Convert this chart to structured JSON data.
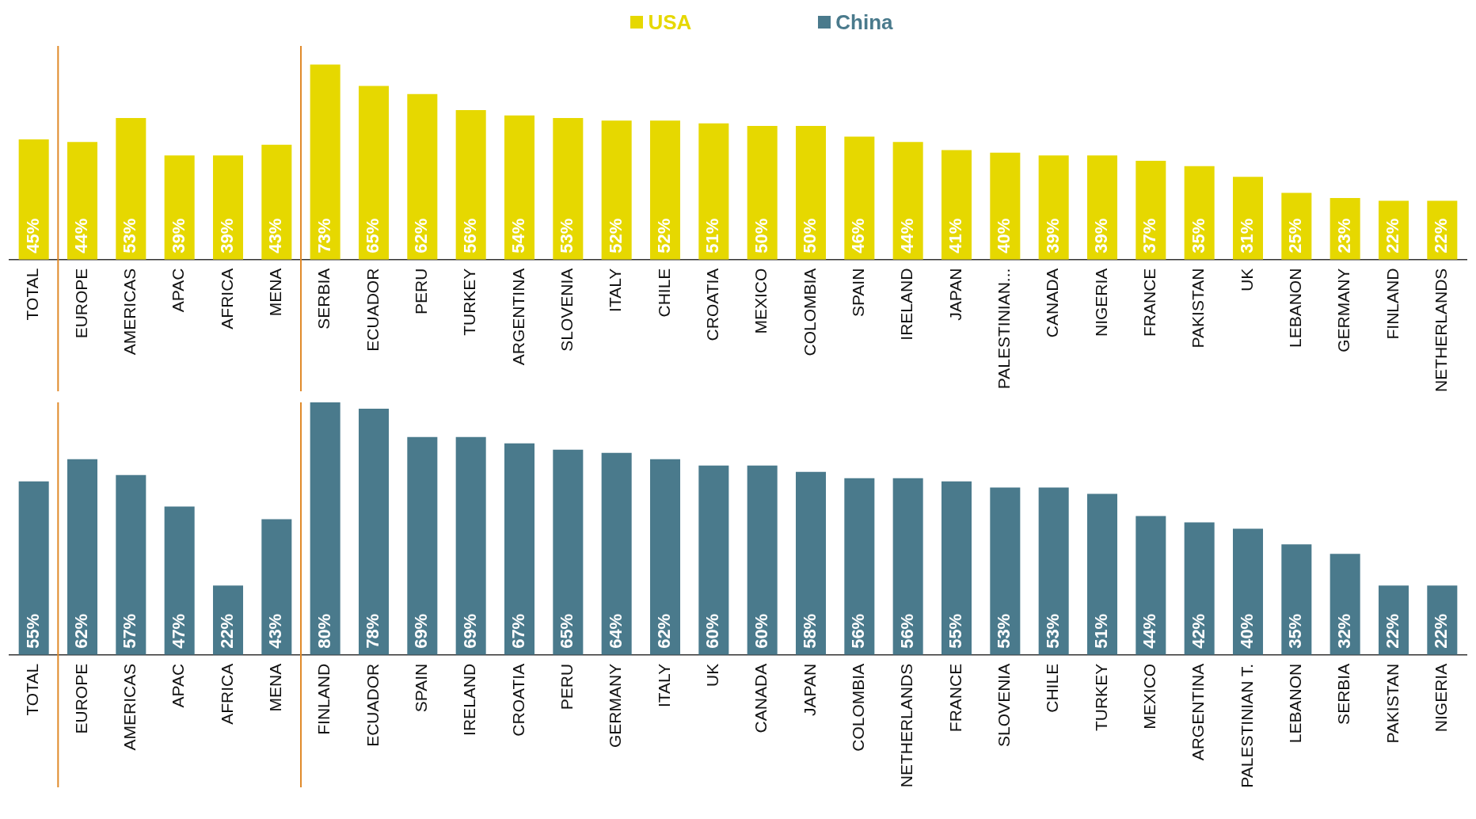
{
  "chart_data": [
    {
      "type": "bar",
      "legend": "top",
      "categories": [
        "TOTAL",
        "EUROPE",
        "AMERICAS",
        "APAC",
        "AFRICA",
        "MENA",
        "SERBIA",
        "ECUADOR",
        "PERU",
        "TURKEY",
        "ARGENTINA",
        "SLOVENIA",
        "ITALY",
        "CHILE",
        "CROATIA",
        "MEXICO",
        "COLOMBIA",
        "SPAIN",
        "IRELAND",
        "JAPAN",
        "PALESTINIAN...",
        "CANADA",
        "NIGERIA",
        "FRANCE",
        "PAKISTAN",
        "UK",
        "LEBANON",
        "GERMANY",
        "FINLAND",
        "NETHERLANDS"
      ],
      "series": [
        {
          "name": "USA",
          "color": "#e6d800",
          "values": [
            45,
            44,
            53,
            39,
            39,
            43,
            73,
            65,
            62,
            56,
            54,
            53,
            52,
            52,
            51,
            50,
            50,
            46,
            44,
            41,
            40,
            39,
            39,
            37,
            35,
            31,
            25,
            23,
            22,
            22
          ],
          "value_labels": [
            "45%",
            "44%",
            "53%",
            "39%",
            "39%",
            "43%",
            "73%",
            "65%",
            "62%",
            "56%",
            "54%",
            "53%",
            "52%",
            "52%",
            "51%",
            "50%",
            "50%",
            "46%",
            "44%",
            "41%",
            "40%",
            "39%",
            "39%",
            "37%",
            "35%",
            "31%",
            "25%",
            "23%",
            "22%",
            "22%"
          ]
        }
      ]
    },
    {
      "type": "bar",
      "legend": "top",
      "categories": [
        "TOTAL",
        "EUROPE",
        "AMERICAS",
        "APAC",
        "AFRICA",
        "MENA",
        "FINLAND",
        "ECUADOR",
        "SPAIN",
        "IRELAND",
        "CROATIA",
        "PERU",
        "GERMANY",
        "ITALY",
        "UK",
        "CANADA",
        "JAPAN",
        "COLOMBIA",
        "NETHERLANDS",
        "FRANCE",
        "SLOVENIA",
        "CHILE",
        "TURKEY",
        "MEXICO",
        "ARGENTINA",
        "PALESTINIAN T.",
        "LEBANON",
        "SERBIA",
        "PAKISTAN",
        "NIGERIA"
      ],
      "series": [
        {
          "name": "China",
          "color": "#4a7a8c",
          "values": [
            55,
            62,
            57,
            47,
            22,
            43,
            80,
            78,
            69,
            69,
            67,
            65,
            64,
            62,
            60,
            60,
            58,
            56,
            56,
            55,
            53,
            53,
            51,
            44,
            42,
            40,
            35,
            32,
            22,
            22
          ],
          "value_labels": [
            "55%",
            "62%",
            "57%",
            "47%",
            "22%",
            "43%",
            "80%",
            "78%",
            "69%",
            "69%",
            "67%",
            "65%",
            "64%",
            "62%",
            "60%",
            "60%",
            "58%",
            "56%",
            "56%",
            "55%",
            "53%",
            "53%",
            "51%",
            "44%",
            "42%",
            "40%",
            "35%",
            "32%",
            "22%",
            "22%"
          ]
        }
      ]
    }
  ]
}
